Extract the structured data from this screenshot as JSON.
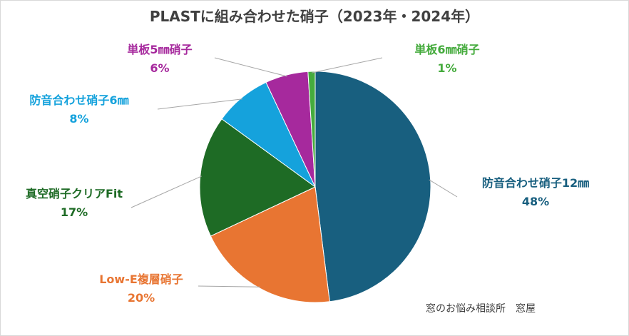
{
  "chart_data": {
    "type": "pie",
    "title": "PLASTに組み合わせた硝子（2023年・2024年）",
    "slices": [
      {
        "label": "防音合わせ硝子12㎜",
        "value": 48,
        "value_label": "48%",
        "color": "#185f7f"
      },
      {
        "label": "Low-E複層硝子",
        "value": 20,
        "value_label": "20%",
        "color": "#e87532"
      },
      {
        "label": "真空硝子クリアFit",
        "value": 17,
        "value_label": "17%",
        "color": "#1e6b25"
      },
      {
        "label": "防音合わせ硝子6㎜",
        "value": 8,
        "value_label": "8%",
        "color": "#15a2dc"
      },
      {
        "label": "単板5㎜硝子",
        "value": 6,
        "value_label": "6%",
        "color": "#a6299d"
      },
      {
        "label": "単板6㎜硝子",
        "value": 1,
        "value_label": "1%",
        "color": "#45ab3d"
      }
    ],
    "start_angle": "12 o'clock",
    "direction": "clockwise",
    "legend": "none"
  },
  "watermark": "窓のお悩み相談所　窓屋"
}
